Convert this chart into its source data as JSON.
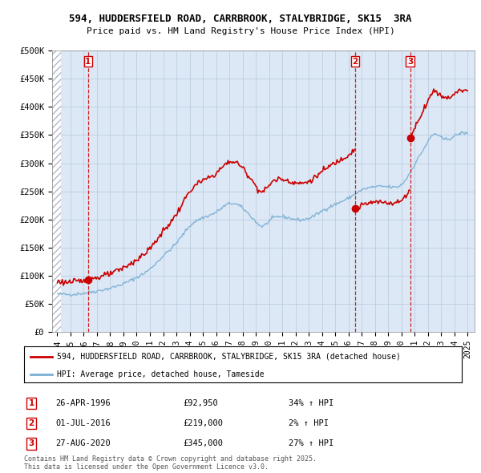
{
  "title": "594, HUDDERSFIELD ROAD, CARRBROOK, STALYBRIDGE, SK15  3RA",
  "subtitle": "Price paid vs. HM Land Registry's House Price Index (HPI)",
  "xlim_start": 1993.6,
  "xlim_end": 2025.5,
  "ylim": [
    0,
    500000
  ],
  "yticks": [
    0,
    50000,
    100000,
    150000,
    200000,
    250000,
    300000,
    350000,
    400000,
    450000,
    500000
  ],
  "ytick_labels": [
    "£0",
    "£50K",
    "£100K",
    "£150K",
    "£200K",
    "£250K",
    "£300K",
    "£350K",
    "£400K",
    "£450K",
    "£500K"
  ],
  "sale1_date": 1996.32,
  "sale1_price": 92950,
  "sale2_date": 2016.5,
  "sale2_price": 219000,
  "sale3_date": 2020.66,
  "sale3_price": 345000,
  "legend_label_red": "594, HUDDERSFIELD ROAD, CARRBROOK, STALYBRIDGE, SK15 3RA (detached house)",
  "legend_label_blue": "HPI: Average price, detached house, Tameside",
  "table_entries": [
    {
      "num": "1",
      "date": "26-APR-1996",
      "price": "£92,950",
      "hpi": "34% ↑ HPI"
    },
    {
      "num": "2",
      "date": "01-JUL-2016",
      "price": "£219,000",
      "hpi": "2% ↑ HPI"
    },
    {
      "num": "3",
      "date": "27-AUG-2020",
      "price": "£345,000",
      "hpi": "27% ↑ HPI"
    }
  ],
  "footnote": "Contains HM Land Registry data © Crown copyright and database right 2025.\nThis data is licensed under the Open Government Licence v3.0.",
  "bg_color": "#dce8f5",
  "hatch_color": "#b0b8c8",
  "grid_color": "#b8c8dc",
  "red_color": "#cc0000",
  "blue_color": "#7aafd4"
}
